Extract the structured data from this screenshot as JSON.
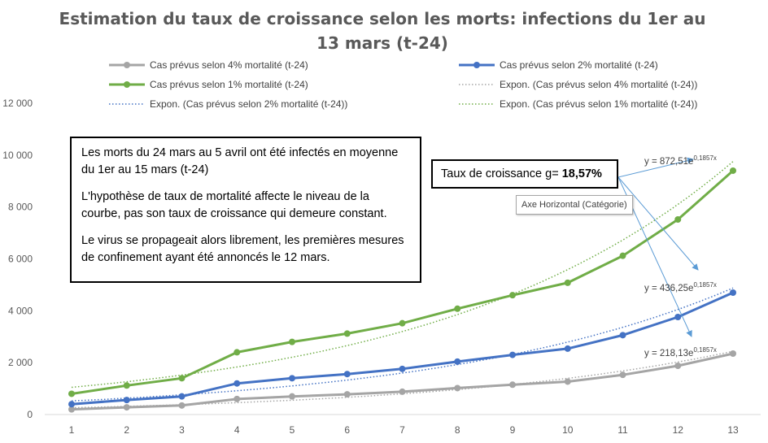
{
  "chart_data": {
    "type": "line",
    "title": "Estimation du taux de croissance selon les morts: infections du 1er au 13 mars (t-24)",
    "categories": [
      "1",
      "2",
      "3",
      "4",
      "5",
      "6",
      "7",
      "8",
      "9",
      "10",
      "11",
      "12",
      "13"
    ],
    "ylim": [
      0,
      12000
    ],
    "yticks": [
      0,
      2000,
      4000,
      6000,
      8000,
      10000,
      12000
    ],
    "ytick_labels": [
      "0",
      "2 000",
      "4 000",
      "6 000",
      "8 000",
      "10 000",
      "12 000"
    ],
    "grid": false,
    "legend_position": "top",
    "series": [
      {
        "name": "Cas prévus selon 4% mortalité (t-24)",
        "color": "#a5a5a5",
        "values": [
          200,
          280,
          350,
          600,
          700,
          780,
          880,
          1020,
          1150,
          1270,
          1530,
          1880,
          2350
        ]
      },
      {
        "name": "Cas prévus selon 2% mortalité (t-24)",
        "color": "#4472c4",
        "values": [
          400,
          560,
          700,
          1200,
          1400,
          1560,
          1760,
          2040,
          2300,
          2540,
          3060,
          3760,
          4700
        ]
      },
      {
        "name": "Cas prévus selon 1% mortalité (t-24)",
        "color": "#70ad47",
        "values": [
          800,
          1120,
          1400,
          2400,
          2800,
          3120,
          3520,
          4080,
          4600,
          5080,
          6120,
          7520,
          9400
        ]
      }
    ],
    "trendlines": [
      {
        "name": "Expon. (Cas prévus selon 4% mortalité (t-24))",
        "color": "#a5a5a5",
        "a": 218.13,
        "b": 0.1857
      },
      {
        "name": "Expon. (Cas prévus selon 2% mortalité (t-24))",
        "color": "#4472c4",
        "a": 436.25,
        "b": 0.1857
      },
      {
        "name": "Expon. (Cas prévus selon 1% mortalité (t-24))",
        "color": "#70ad47",
        "a": 872.51,
        "b": 0.1857
      }
    ],
    "equations": [
      {
        "label": "y = 872,51e",
        "exponent": "0,1857x"
      },
      {
        "label": "y = 436,25e",
        "exponent": "0,1857x"
      },
      {
        "label": "y = 218,13e",
        "exponent": "0,1857x"
      }
    ],
    "annotations": {
      "note_lines": [
        "Les morts du 24 mars au 5 avril ont été infectés en moyenne du 1er au 15 mars (t-24)",
        "L'hypothèse de taux de mortalité affecte le niveau de la courbe, pas son taux de croissance qui demeure constant.",
        "Le virus se propageait alors librement, les premières mesures de confinement ayant été annoncés le 12 mars."
      ],
      "rate_label": "Taux de croissance g= ",
      "rate_value": "18,57%",
      "tooltip": "Axe Horizontal (Catégorie)"
    }
  }
}
